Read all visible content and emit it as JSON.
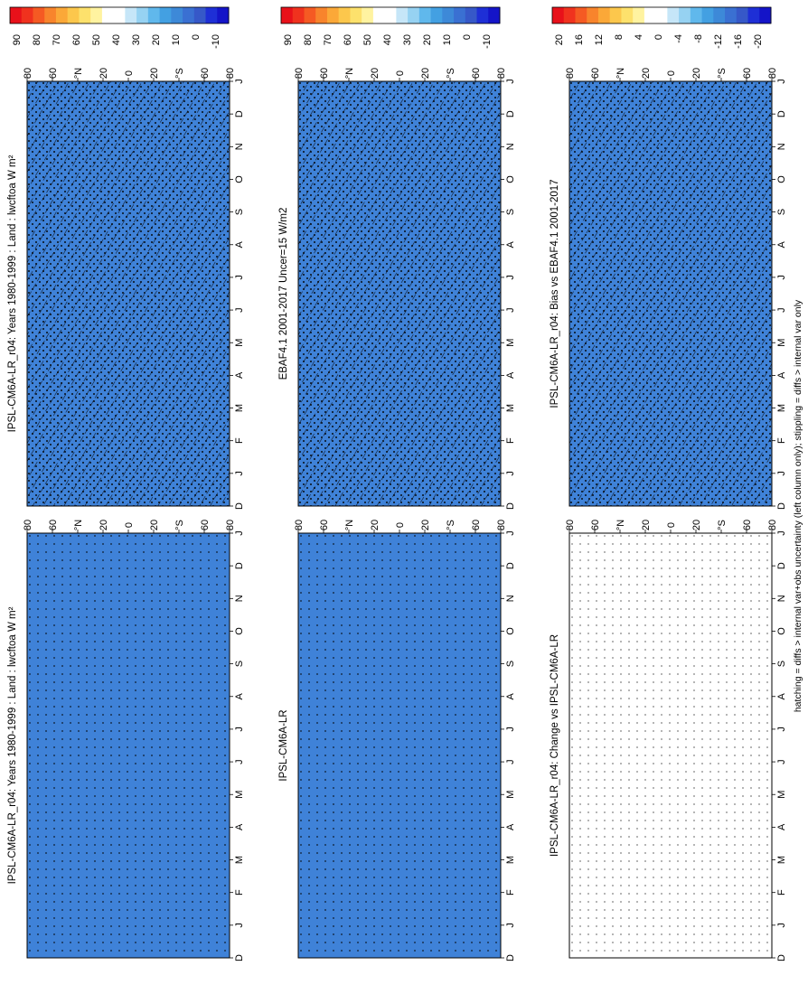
{
  "figure": {
    "footnote": "hatching = diffs > internal var+obs uncertainty (left column only); stippling = diffs > internal var only"
  },
  "scales": {
    "abs": {
      "colors": [
        "#e8111a",
        "#f0321e",
        "#f55a23",
        "#f8842c",
        "#fba838",
        "#fcc74c",
        "#fde16c",
        "#fff3a0",
        "#ffffff",
        "#ffffff",
        "#c6e6f8",
        "#96d2f2",
        "#60b8ec",
        "#43a0e2",
        "#3d89d8",
        "#3a70d2",
        "#3658c8",
        "#1e2fd6",
        "#1414c8"
      ],
      "labels": [
        "90",
        "80",
        "70",
        "60",
        "50",
        "40",
        "30",
        "20",
        "10",
        "0",
        "-10"
      ]
    },
    "diff": {
      "colors": [
        "#e8111a",
        "#f0321e",
        "#f55a23",
        "#f8842c",
        "#fba838",
        "#fcc74c",
        "#fde16c",
        "#fff3a0",
        "#ffffff",
        "#ffffff",
        "#c6e6f8",
        "#96d2f2",
        "#60b8ec",
        "#43a0e2",
        "#3d89d8",
        "#3a70d2",
        "#3658c8",
        "#1e2fd6",
        "#1414c8"
      ],
      "labels": [
        "20",
        "16",
        "12",
        "8",
        "4",
        "0",
        "-4",
        "-8",
        "-12",
        "-16",
        "-20"
      ]
    }
  },
  "axes": {
    "months": [
      "D",
      "J",
      "F",
      "M",
      "A",
      "M",
      "J",
      "J",
      "A",
      "S",
      "O",
      "N",
      "D",
      "J"
    ],
    "lats": [
      "80",
      "60",
      "°N",
      "20",
      "0",
      "20",
      "°S",
      "60",
      "80"
    ]
  },
  "chart_data": [
    {
      "type": "heatmap",
      "id": "p1",
      "title": "IPSL-CM6A-LR_r04: Years 1980-1999 : Land : lwcftoa W m²",
      "scale": "abs",
      "hatching": true,
      "stipple": "dense"
    },
    {
      "type": "heatmap",
      "id": "p2",
      "title": "IPSL-CM6A-LR_r04: Years 1980-1999 : Land : lwcftoa W m²",
      "scale": "abs",
      "hatching": false,
      "stipple": "sparse"
    },
    {
      "type": "heatmap",
      "id": "p3",
      "title": "EBAF4.1 2001-2017 Uncer=15 W/m2",
      "scale": "abs",
      "hatching": true,
      "stipple": "dense"
    },
    {
      "type": "heatmap",
      "id": "p4",
      "title": "IPSL-CM6A-LR",
      "scale": "abs",
      "hatching": false,
      "stipple": "sparse"
    },
    {
      "type": "heatmap",
      "id": "p5",
      "title": "IPSL-CM6A-LR_r04: Bias vs EBAF4.1 2001-2017",
      "scale": "diff",
      "hatching": true,
      "stipple": "dense"
    },
    {
      "type": "heatmap",
      "id": "p6",
      "title": "IPSL-CM6A-LR_r04: Change vs IPSL-CM6A-LR",
      "scale": "diff",
      "hatching": false,
      "stipple": "sparse"
    }
  ]
}
